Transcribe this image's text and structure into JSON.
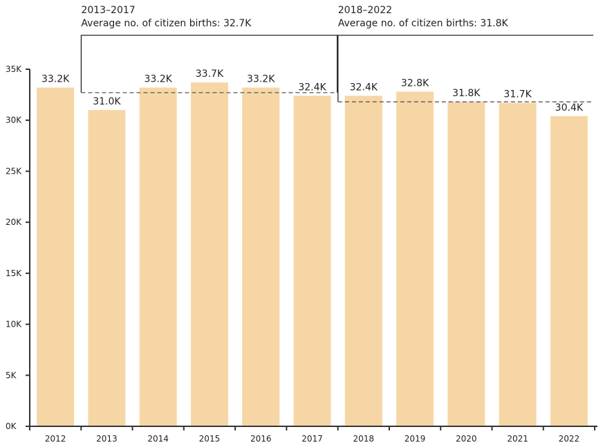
{
  "colors": {
    "bar": "#f7d6a6",
    "axis": "#333333",
    "text": "#1f1f1f",
    "bracket": "#222222",
    "average_line": "#555555"
  },
  "chart_data": {
    "type": "bar",
    "title": "",
    "xlabel": "",
    "ylabel": "",
    "ylim": [
      0,
      35000
    ],
    "yticks": [
      0,
      5000,
      10000,
      15000,
      20000,
      25000,
      30000,
      35000
    ],
    "ytick_labels": [
      "0K",
      "5K",
      "10K",
      "15K",
      "20K",
      "25K",
      "30K",
      "35K"
    ],
    "categories": [
      "2012",
      "2013",
      "2014",
      "2015",
      "2016",
      "2017",
      "2018",
      "2019",
      "2020",
      "2021",
      "2022"
    ],
    "values": [
      33200,
      31000,
      33200,
      33700,
      33200,
      32400,
      32400,
      32800,
      31800,
      31700,
      30400
    ],
    "data_labels": [
      "33.2K",
      "31.0K",
      "33.2K",
      "33.7K",
      "33.2K",
      "32.4K",
      "32.4K",
      "32.8K",
      "31.8K",
      "31.7K",
      "30.4K"
    ],
    "grid": false,
    "legend": "none",
    "annotations": [
      {
        "period": "2013–2017",
        "text": "Average no. of citizen births: 32.7K",
        "from": "2013",
        "to": "2017",
        "average": 32700
      },
      {
        "period": "2018–2022",
        "text": "Average no. of citizen births: 31.8K",
        "from": "2018",
        "to": "2022",
        "average": 31800
      }
    ]
  }
}
